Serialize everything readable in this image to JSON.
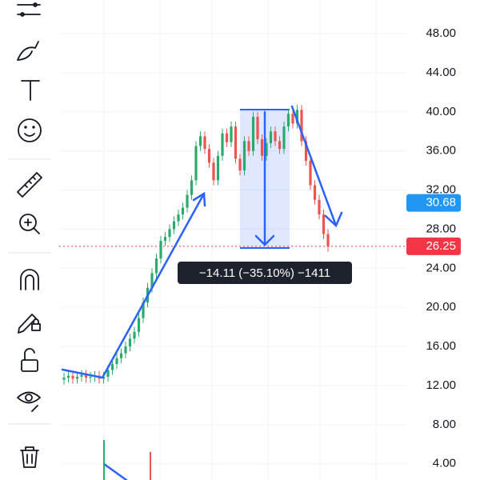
{
  "chart_data": {
    "type": "candlestick",
    "ylim": [
      2.34,
      51.44
    ],
    "yticks": [
      {
        "value": 48,
        "label": "48.00"
      },
      {
        "value": 44,
        "label": "44.00"
      },
      {
        "value": 40,
        "label": "40.00"
      },
      {
        "value": 36,
        "label": "36.00"
      },
      {
        "value": 32,
        "label": "32.00"
      },
      {
        "value": 28,
        "label": "28.00"
      },
      {
        "value": 24,
        "label": "24.00"
      },
      {
        "value": 20,
        "label": "20.00"
      },
      {
        "value": 16,
        "label": "16.00"
      },
      {
        "value": 12,
        "label": "12.00"
      },
      {
        "value": 8,
        "label": "8.00"
      },
      {
        "value": 4,
        "label": "4.00"
      }
    ],
    "grid": true,
    "up_color": "#2bab6b",
    "down_color": "#ef5350",
    "candles": {
      "open": [
        12.6,
        12.8,
        13.0,
        12.7,
        12.9,
        13.1,
        12.8,
        12.9,
        13.0,
        12.7,
        12.9,
        13.6,
        14.2,
        14.8,
        15.3,
        16.0,
        16.8,
        17.5,
        18.9,
        20.5,
        22.0,
        23.5,
        25.0,
        26.8,
        27.2,
        28.0,
        28.8,
        29.5,
        30.2,
        31.5,
        33.0,
        36.5,
        37.5,
        36.2,
        34.8,
        33.0,
        35.5,
        37.8,
        36.9,
        38.5,
        35.2,
        34.0,
        37.0,
        36.0,
        39.5,
        37.2,
        35.5,
        36.8,
        38.0,
        37.0,
        36.2,
        38.5,
        39.8,
        38.8,
        40.2,
        37.0,
        35.0,
        32.5,
        31.0,
        29.5,
        27.5
      ],
      "high": [
        13.3,
        13.5,
        13.5,
        13.4,
        13.6,
        13.6,
        13.4,
        13.5,
        13.5,
        13.4,
        14.1,
        14.7,
        15.3,
        15.8,
        16.5,
        17.3,
        18.0,
        19.4,
        21.0,
        22.5,
        24.0,
        25.5,
        27.3,
        27.7,
        28.5,
        29.3,
        30.0,
        30.7,
        32.0,
        33.5,
        37.0,
        38.0,
        38.0,
        36.7,
        35.3,
        36.0,
        38.3,
        38.3,
        39.0,
        39.0,
        35.7,
        37.5,
        37.5,
        40.0,
        40.0,
        37.7,
        37.3,
        38.5,
        38.5,
        37.5,
        39.0,
        40.3,
        40.3,
        40.7,
        40.7,
        37.5,
        35.5,
        33.0,
        31.5,
        30.0,
        28.0
      ],
      "low": [
        12.1,
        12.3,
        12.2,
        12.2,
        12.4,
        12.3,
        12.3,
        12.4,
        12.2,
        12.2,
        12.4,
        13.1,
        13.7,
        14.3,
        14.8,
        15.5,
        16.3,
        17.0,
        18.4,
        20.0,
        21.5,
        23.0,
        24.5,
        26.3,
        26.7,
        27.5,
        28.3,
        29.0,
        29.7,
        31.0,
        32.5,
        36.0,
        35.7,
        34.3,
        32.5,
        32.5,
        35.0,
        36.4,
        36.4,
        34.7,
        33.5,
        33.5,
        35.5,
        35.5,
        36.7,
        35.0,
        35.0,
        36.3,
        36.5,
        35.7,
        35.7,
        38.0,
        38.3,
        38.3,
        36.5,
        34.5,
        32.0,
        30.5,
        29.0,
        27.0,
        25.7
      ],
      "close": [
        12.8,
        13.0,
        12.7,
        12.9,
        13.1,
        12.8,
        12.9,
        13.0,
        12.7,
        12.9,
        13.6,
        14.2,
        14.8,
        15.3,
        16.0,
        16.8,
        17.5,
        18.9,
        20.5,
        22.0,
        23.5,
        25.0,
        26.8,
        27.2,
        28.0,
        28.8,
        29.5,
        30.2,
        31.5,
        33.0,
        36.5,
        37.5,
        36.2,
        34.8,
        33.0,
        35.5,
        37.8,
        36.9,
        38.5,
        35.2,
        34.0,
        37.0,
        36.0,
        39.5,
        37.2,
        35.5,
        36.8,
        38.0,
        37.0,
        36.2,
        38.5,
        39.8,
        38.8,
        40.2,
        37.0,
        35.0,
        32.5,
        31.0,
        29.5,
        27.5,
        26.25
      ]
    },
    "price_labels": [
      {
        "value": 30.68,
        "label": "30.68",
        "color": "#2196f3"
      },
      {
        "value": 26.25,
        "label": "26.25",
        "color": "#f23645"
      }
    ],
    "annotation": "−14.11 (−35.10%) −1411"
  }
}
